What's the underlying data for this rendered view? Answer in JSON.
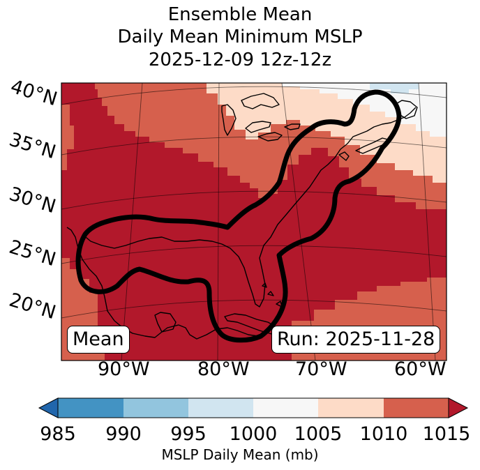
{
  "title": {
    "line1": "Ensemble Mean",
    "line2": "Daily Mean Minimum MSLP",
    "line3": "2025-12-09 12z-12z"
  },
  "map": {
    "latitude_labels": [
      "40°N",
      "35°N",
      "30°N",
      "25°N",
      "20°N"
    ],
    "longitude_labels": [
      "90°W",
      "80°W",
      "70°W",
      "60°W"
    ],
    "mean_box": "Mean",
    "run_box": "Run: 2025-11-28",
    "colors": {
      "land_water_outline": "#000000",
      "contour": "#000000",
      "band_1015_plus": "#b2182b",
      "band_1010_1015": "#d6604d",
      "band_1005_1010": "#fddbc7",
      "band_1000_1005": "#f7f7f7",
      "band_995_1000": "#d1e5f0"
    }
  },
  "colorbar": {
    "ticks": [
      "985",
      "990",
      "995",
      "1000",
      "1005",
      "1010",
      "1015"
    ],
    "colors": [
      "#4393c3",
      "#92c5de",
      "#d1e5f0",
      "#f7f7f7",
      "#fddbc7",
      "#d6604d"
    ],
    "under_color": "#2166ac",
    "over_color": "#b2182b",
    "label": "MSLP Daily Mean (mb)"
  }
}
